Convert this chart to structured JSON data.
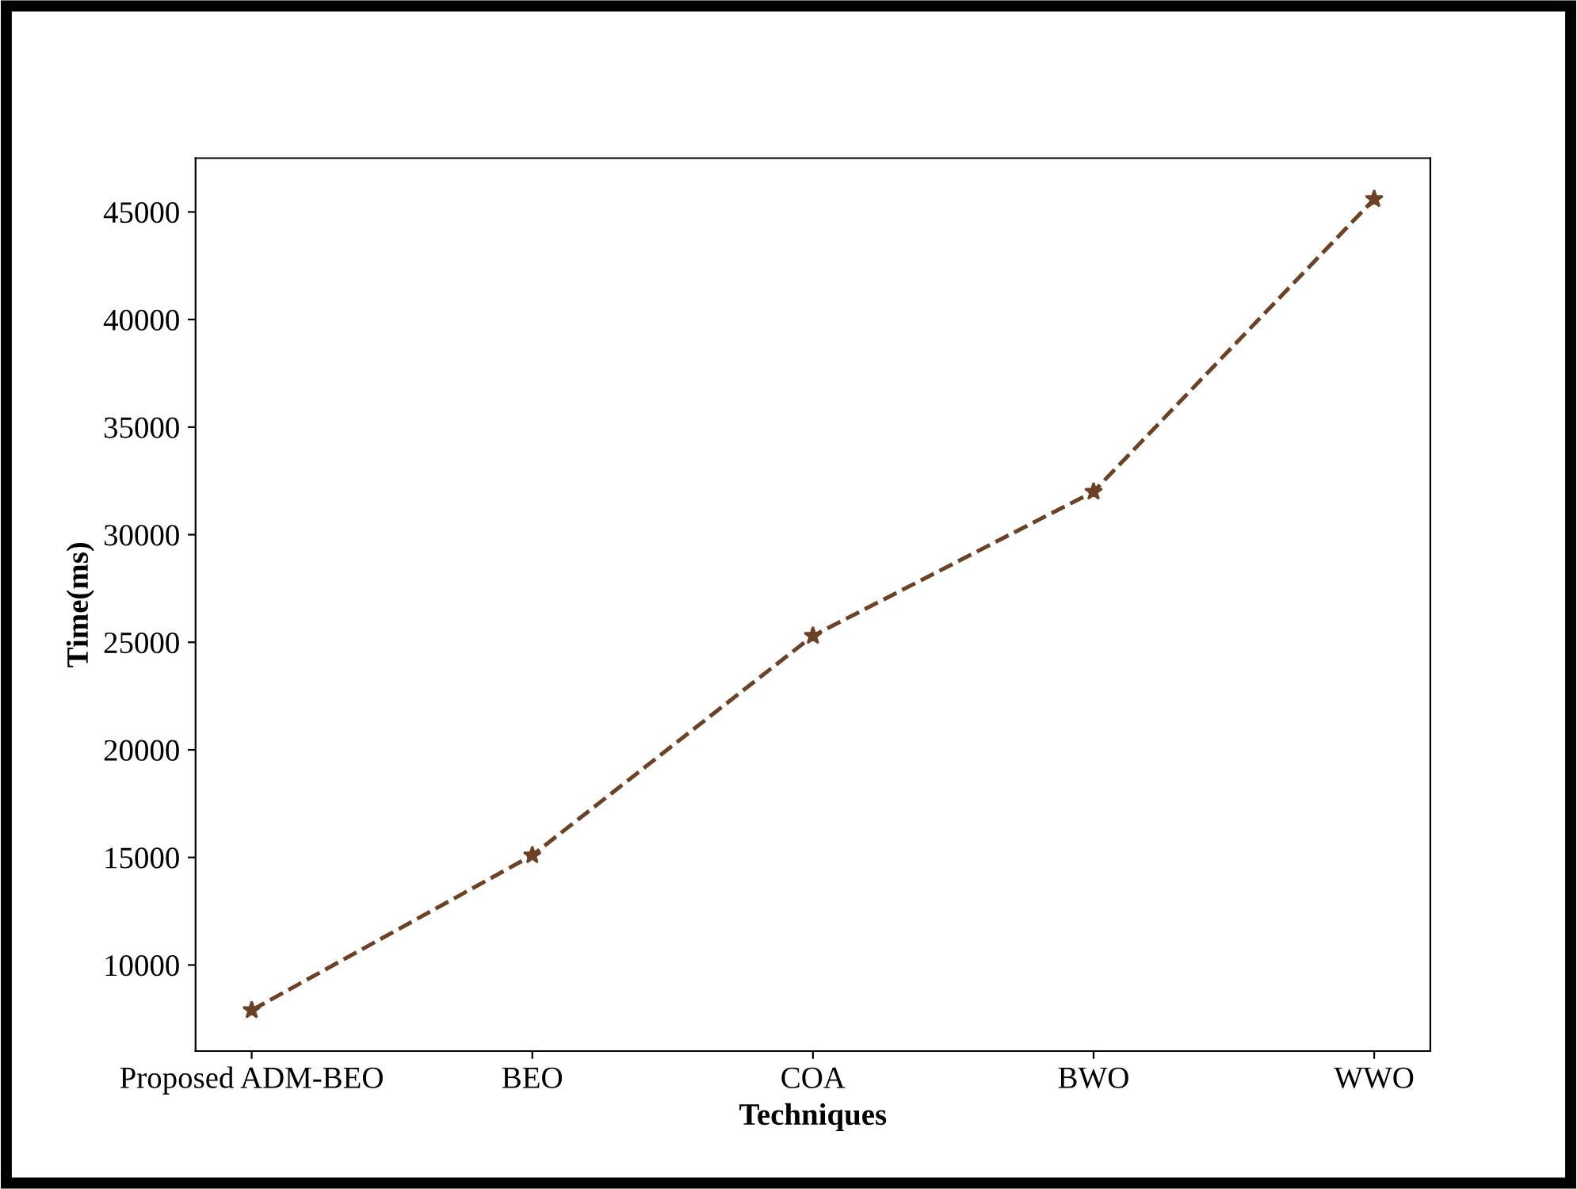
{
  "chart_data": {
    "type": "line",
    "xlabel": "Techniques",
    "ylabel": "Time(ms)",
    "categories": [
      "Proposed ADM-BEO",
      "BEO",
      "COA",
      "BWO",
      "WWO"
    ],
    "series": [
      {
        "color": "#6b4226",
        "values": [
          7900,
          15100,
          25300,
          32000,
          45600
        ]
      }
    ],
    "ylim": [
      6000,
      47500
    ],
    "yticks": [
      10000,
      15000,
      20000,
      25000,
      30000,
      35000,
      40000,
      45000
    ],
    "marker": "star",
    "line_style": "dashed",
    "grid": false,
    "legend": false
  }
}
